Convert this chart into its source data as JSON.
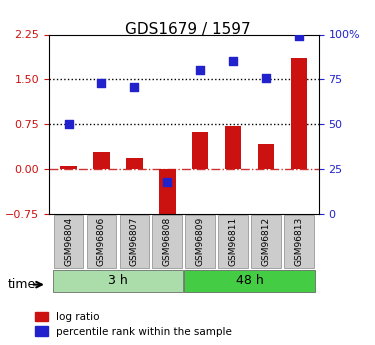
{
  "title": "GDS1679 / 1597",
  "samples": [
    "GSM96804",
    "GSM96806",
    "GSM96807",
    "GSM96808",
    "GSM96809",
    "GSM96811",
    "GSM96812",
    "GSM96813"
  ],
  "log_ratio": [
    0.05,
    0.28,
    0.18,
    -0.85,
    0.62,
    0.72,
    0.42,
    1.85
  ],
  "percentile_rank": [
    50,
    73,
    71,
    18,
    80,
    85,
    76,
    99
  ],
  "groups": [
    {
      "label": "3 h",
      "indices": [
        0,
        1,
        2,
        3
      ],
      "color": "#aaddaa"
    },
    {
      "label": "48 h",
      "indices": [
        4,
        5,
        6,
        7
      ],
      "color": "#44cc44"
    }
  ],
  "group_label_prefix": "time",
  "bar_color": "#cc1111",
  "dot_color": "#2222cc",
  "ylim_left": [
    -0.75,
    2.25
  ],
  "ylim_right": [
    0,
    100
  ],
  "yticks_left": [
    -0.75,
    0,
    0.75,
    1.5,
    2.25
  ],
  "yticks_right": [
    0,
    25,
    50,
    75,
    100
  ],
  "hlines": [
    0.75,
    1.5
  ],
  "hline_color": "black",
  "zero_line_color": "#cc3333",
  "bg_color": "white",
  "legend_labels": [
    "log ratio",
    "percentile rank within the sample"
  ]
}
